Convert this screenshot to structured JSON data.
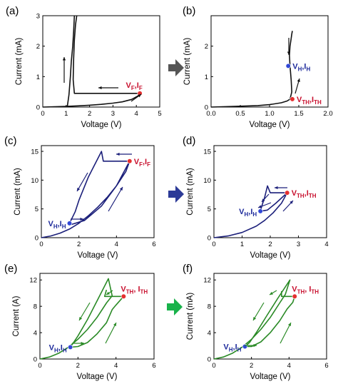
{
  "colors": {
    "black_curve": "#111111",
    "navy_curve": "#1b1f7a",
    "green_curve": "#2a8a26",
    "label_red": "#c8102e",
    "label_blue": "#1d2a9b",
    "marker_red": "#e53030",
    "marker_blue": "#3148d6",
    "arrow_gray": "#555555",
    "arrow_navy": "#2c3a97",
    "arrow_green": "#19b24b"
  },
  "chart_data": [
    {
      "id": "a",
      "panel_label": "(a)",
      "type": "line",
      "xlabel": "Voltage (V)",
      "ylabel": "Current (mA)",
      "xlim": [
        0,
        5
      ],
      "ylim": [
        0,
        3
      ],
      "xticks": [
        0,
        1,
        2,
        3,
        4,
        5
      ],
      "yticks": [
        0,
        1,
        2,
        3
      ],
      "color_key": "black_curve",
      "series": [
        {
          "x": [
            0,
            0.5,
            1.0,
            1.5,
            2.0,
            2.5,
            3.0,
            3.4,
            3.8,
            4.1,
            4.15,
            1.35,
            1.3,
            1.32,
            1.35,
            1.4,
            1.45
          ],
          "y": [
            0,
            0.01,
            0.02,
            0.04,
            0.06,
            0.09,
            0.13,
            0.17,
            0.25,
            0.38,
            0.45,
            0.45,
            0.9,
            1.6,
            2.2,
            2.7,
            3.0
          ]
        },
        {
          "x": [
            1.05,
            1.12,
            1.18,
            1.22,
            1.28,
            1.32,
            1.35
          ],
          "y": [
            0.02,
            0.4,
            1.0,
            1.5,
            2.0,
            2.5,
            3.0
          ]
        }
      ],
      "points": [
        {
          "x": 4.15,
          "y": 0.45,
          "marker_color_key": "marker_red",
          "label_color_key": "label_red",
          "label": "V",
          "sub": "F",
          "label2": ",I",
          "sub2": "F",
          "label_pos": "above-left"
        }
      ]
    },
    {
      "id": "b",
      "panel_label": "(b)",
      "type": "line",
      "xlabel": "Voltage (V)",
      "ylabel": "Current (mA)",
      "xlim": [
        0,
        2.0
      ],
      "ylim": [
        0,
        3
      ],
      "xticks": [
        0.0,
        0.5,
        1.0,
        1.5,
        2.0
      ],
      "yticks": [
        0,
        1,
        2
      ],
      "xtick_labels": [
        "0.0",
        "0.5",
        "1.0",
        "1.5",
        "2.0"
      ],
      "color_key": "black_curve",
      "series": [
        {
          "x": [
            0,
            0.4,
            0.8,
            1.0,
            1.2,
            1.3,
            1.35,
            1.38,
            1.37,
            1.35,
            1.34,
            1.35,
            1.37,
            1.38,
            1.39
          ],
          "y": [
            0,
            0.02,
            0.05,
            0.08,
            0.14,
            0.2,
            0.26,
            0.5,
            0.9,
            1.35,
            1.7,
            2.0,
            2.25,
            2.4,
            2.5
          ]
        }
      ],
      "points": [
        {
          "x": 1.32,
          "y": 1.35,
          "marker_color_key": "marker_blue",
          "label_color_key": "label_blue",
          "label": "V",
          "sub": "H",
          "label2": ",I",
          "sub2": "H",
          "label_pos": "right"
        },
        {
          "x": 1.39,
          "y": 0.26,
          "marker_color_key": "marker_red",
          "label_color_key": "label_red",
          "label": "V",
          "sub": "TH",
          "label2": ",I",
          "sub2": "TH",
          "label_pos": "right"
        }
      ]
    },
    {
      "id": "c",
      "panel_label": "(c)",
      "type": "line",
      "xlabel": "Voltage (V)",
      "ylabel": "Current (mA)",
      "xlim": [
        0,
        6
      ],
      "ylim": [
        0,
        16
      ],
      "xticks": [
        0,
        2,
        4,
        6
      ],
      "yticks": [
        0,
        5,
        10,
        15
      ],
      "color_key": "navy_curve",
      "series": [
        {
          "x": [
            0,
            0.5,
            1.0,
            1.5,
            2.0,
            2.5,
            3.0,
            3.5,
            4.0,
            4.5,
            4.7,
            3.3,
            3.2,
            2.5,
            2.0,
            1.8,
            1.5,
            1.6,
            2.3,
            3.2,
            4.0,
            4.7
          ],
          "y": [
            0,
            0.3,
            0.8,
            1.5,
            2.5,
            3.8,
            5.3,
            7.0,
            9.0,
            11.5,
            13.3,
            13.3,
            15.0,
            10.5,
            6.5,
            4.5,
            2.5,
            2.3,
            3.0,
            5.5,
            9.0,
            13.3
          ]
        }
      ],
      "points": [
        {
          "x": 4.7,
          "y": 13.3,
          "marker_color_key": "marker_red",
          "label_color_key": "label_red",
          "label": "V",
          "sub": "F",
          "label2": ",I",
          "sub2": "F",
          "label_pos": "right"
        },
        {
          "x": 1.5,
          "y": 2.5,
          "marker_color_key": "marker_blue",
          "label_color_key": "label_blue",
          "label": "V",
          "sub": "H",
          "label2": ",I",
          "sub2": "H",
          "label_pos": "left"
        }
      ]
    },
    {
      "id": "d",
      "panel_label": "(d)",
      "type": "line",
      "xlabel": "Voltage (V)",
      "ylabel": "Current (mA)",
      "xlim": [
        0,
        4
      ],
      "ylim": [
        0,
        16
      ],
      "xticks": [
        0,
        1,
        2,
        3,
        4
      ],
      "yticks": [
        0,
        5,
        10,
        15
      ],
      "color_key": "navy_curve",
      "series": [
        {
          "x": [
            0,
            0.5,
            1.0,
            1.5,
            1.8,
            2.1,
            2.4,
            2.6,
            2.0,
            1.9,
            1.8,
            1.7,
            1.65,
            1.9,
            2.2,
            2.6
          ],
          "y": [
            0,
            0.3,
            0.9,
            2.0,
            3.0,
            4.3,
            6.0,
            7.8,
            7.8,
            9.0,
            7.0,
            5.5,
            4.6,
            4.8,
            6.0,
            7.8
          ]
        }
      ],
      "points": [
        {
          "x": 2.6,
          "y": 7.8,
          "marker_color_key": "marker_red",
          "label_color_key": "label_red",
          "label": "V",
          "sub": "TH",
          "label2": ",I",
          "sub2": "TH",
          "label_pos": "right"
        },
        {
          "x": 1.65,
          "y": 4.6,
          "marker_color_key": "marker_blue",
          "label_color_key": "label_blue",
          "label": "V",
          "sub": "H",
          "label2": ",I",
          "sub2": "H",
          "label_pos": "left"
        }
      ]
    },
    {
      "id": "e",
      "panel_label": "(e)",
      "type": "line",
      "xlabel": "Voltage (V)",
      "ylabel": "Current (A)",
      "xlim": [
        0,
        6
      ],
      "ylim": [
        0,
        13
      ],
      "xticks": [
        0,
        2,
        4,
        6
      ],
      "yticks": [
        0,
        4,
        8,
        12
      ],
      "color_key": "green_curve",
      "series": [
        {
          "x": [
            0,
            0.5,
            1.0,
            1.5,
            2.0,
            2.5,
            3.0,
            3.5,
            3.8,
            3.6,
            3.0,
            2.5,
            2.0,
            1.6,
            2.0,
            2.5,
            3.0,
            3.5,
            3.8,
            4.0,
            4.4,
            4.4,
            3.4,
            3.5
          ],
          "y": [
            0,
            0.3,
            0.9,
            1.8,
            3.0,
            4.5,
            6.3,
            8.5,
            9.6,
            12.2,
            8.8,
            6.0,
            3.5,
            1.8,
            1.9,
            2.5,
            3.8,
            5.5,
            7.5,
            8.2,
            9.5,
            9.5,
            9.5,
            10.5
          ]
        }
      ],
      "points": [
        {
          "x": 4.4,
          "y": 9.5,
          "marker_color_key": "marker_red",
          "label_color_key": "label_red",
          "label": "V",
          "sub": "TH",
          "label2": ", I",
          "sub2": "TH",
          "label_pos": "above-right"
        },
        {
          "x": 1.6,
          "y": 1.8,
          "marker_color_key": "marker_blue",
          "label_color_key": "label_blue",
          "label": "V",
          "sub": "H",
          "label2": ",I",
          "sub2": "H",
          "label_pos": "left"
        }
      ]
    },
    {
      "id": "f",
      "panel_label": "(f)",
      "type": "line",
      "xlabel": "Voltage (V)",
      "ylabel": "Current (mA)",
      "xlim": [
        0,
        6
      ],
      "ylim": [
        0,
        13
      ],
      "xticks": [
        0,
        2,
        4,
        6
      ],
      "yticks": [
        0,
        4,
        8,
        12
      ],
      "color_key": "green_curve",
      "series": [
        {
          "x": [
            0,
            0.5,
            1.0,
            1.5,
            2.0,
            2.5,
            3.0,
            3.5,
            3.8,
            4.05,
            3.4,
            2.8,
            2.3,
            1.9,
            1.65,
            2.0,
            2.5,
            3.0,
            3.5,
            3.9,
            4.2,
            4.3,
            3.6,
            3.6
          ],
          "y": [
            0,
            0.3,
            0.9,
            1.8,
            3.0,
            4.5,
            6.3,
            8.5,
            9.8,
            12.0,
            9.2,
            6.5,
            4.2,
            2.5,
            1.9,
            1.9,
            2.6,
            4.0,
            5.8,
            7.6,
            8.6,
            9.5,
            9.5,
            10.3
          ]
        }
      ],
      "points": [
        {
          "x": 4.3,
          "y": 9.5,
          "marker_color_key": "marker_red",
          "label_color_key": "label_red",
          "label": "V",
          "sub": "TH",
          "label2": ", I",
          "sub2": "TH",
          "label_pos": "above-right"
        },
        {
          "x": 1.65,
          "y": 1.9,
          "marker_color_key": "marker_blue",
          "label_color_key": "label_blue",
          "label": "V",
          "sub": "H",
          "label2": ",I",
          "sub2": "H",
          "label_pos": "left"
        }
      ]
    }
  ],
  "transition_arrows": [
    {
      "from": "a",
      "to": "b",
      "color_key": "arrow_gray"
    },
    {
      "from": "c",
      "to": "d",
      "color_key": "arrow_navy"
    },
    {
      "from": "e",
      "to": "f",
      "color_key": "arrow_green"
    }
  ]
}
